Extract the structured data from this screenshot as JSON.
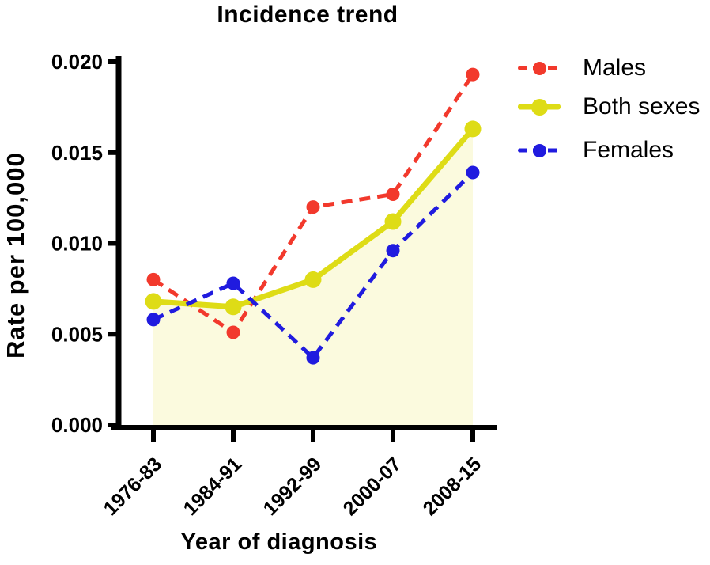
{
  "figure": {
    "background_color": "#FFFFFF",
    "axis_color": "#000000"
  },
  "chart_data": {
    "type": "line",
    "title": "Incidence trend",
    "xlabel": "Year of diagnosis",
    "ylabel": "Rate per 100,000",
    "categories": [
      "1976-83",
      "1984-91",
      "1992-99",
      "2000-07",
      "2008-15"
    ],
    "series": [
      {
        "name": "Males",
        "color": "#F2392C",
        "line_style": "dashed",
        "marker": "circle",
        "values": [
          0.008,
          0.0051,
          0.012,
          0.0127,
          0.0193
        ]
      },
      {
        "name": "Both sexes",
        "color": "#DEDC16",
        "line_style": "solid",
        "marker": "circle",
        "fill_under": true,
        "fill_color": "#FBFADE",
        "values": [
          0.0068,
          0.0065,
          0.008,
          0.0112,
          0.0163
        ]
      },
      {
        "name": "Females",
        "color": "#201BDF",
        "line_style": "dashed",
        "marker": "circle",
        "values": [
          0.0058,
          0.0078,
          0.0037,
          0.0096,
          0.0139
        ]
      }
    ],
    "ylim": [
      0.0,
      0.02
    ],
    "y_ticks": [
      0.0,
      0.005,
      0.01,
      0.015,
      0.02
    ],
    "y_tick_labels": [
      "0.000",
      "0.005",
      "0.010",
      "0.015",
      "0.020"
    ],
    "x_tick_rotation_deg": -45,
    "grid": false,
    "legend_position": "top-right"
  }
}
